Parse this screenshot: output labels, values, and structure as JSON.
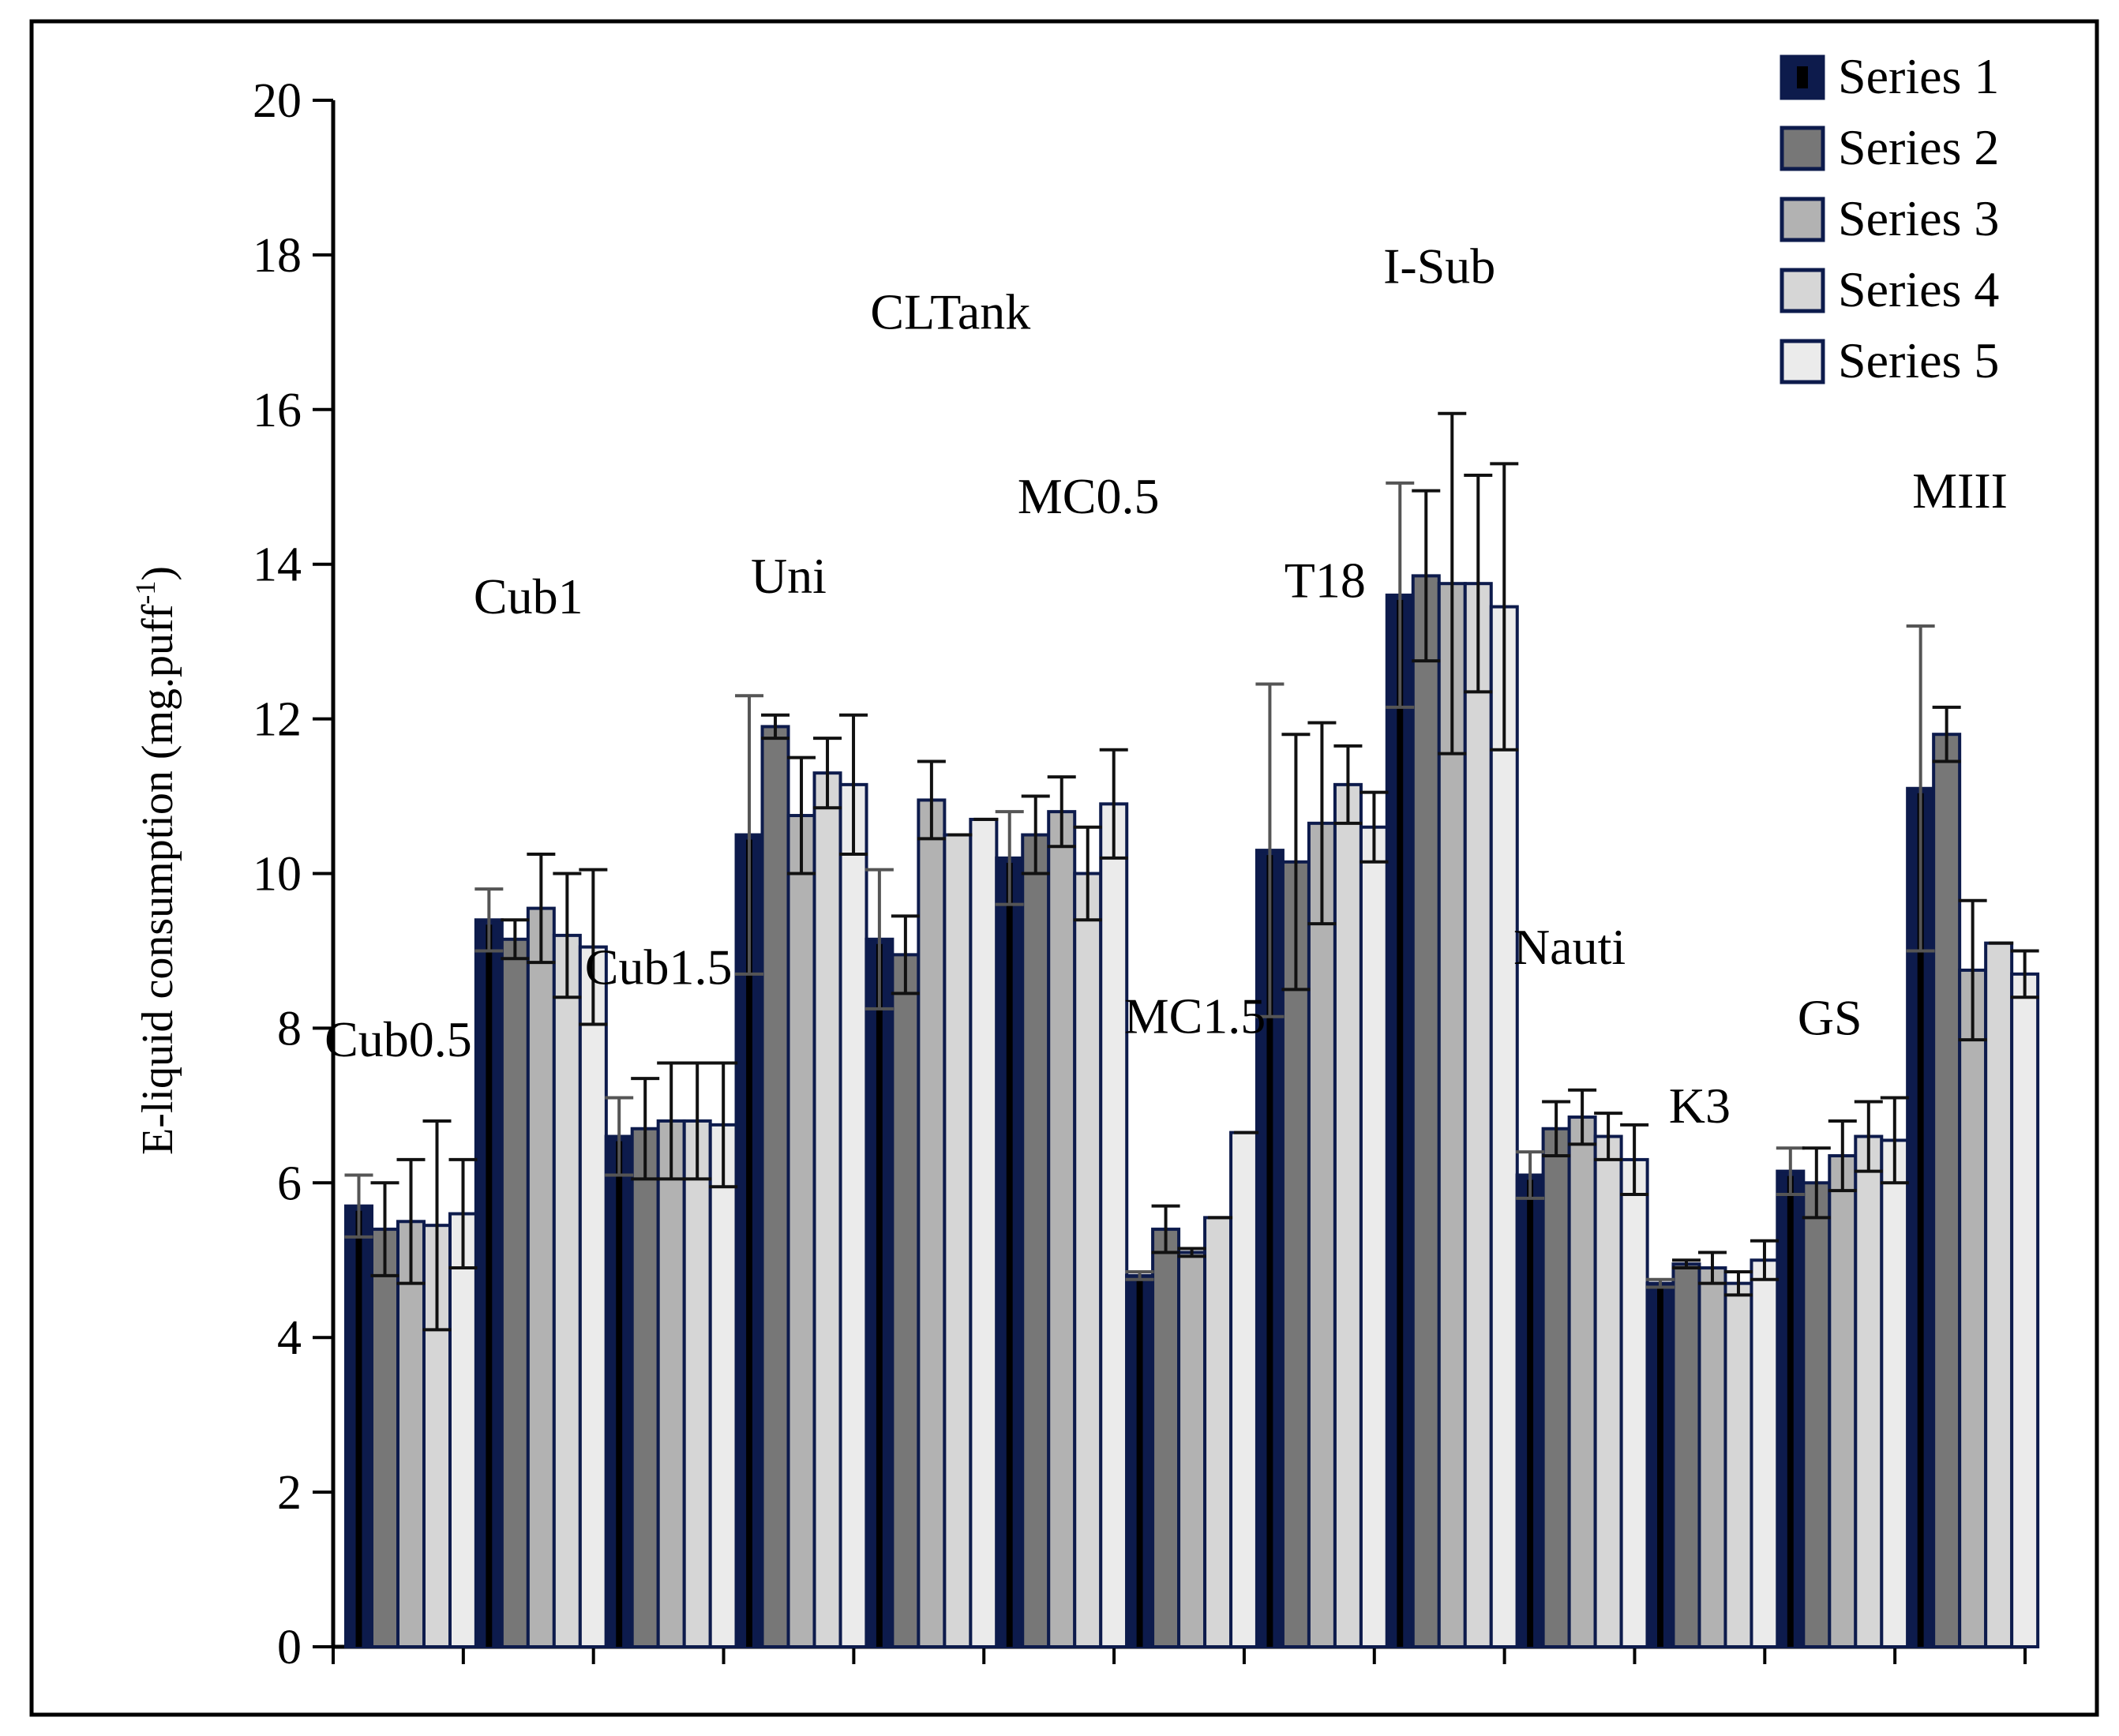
{
  "chart_data": {
    "type": "bar",
    "title": "",
    "xlabel": "",
    "ylabel": "E-liquid consumption (mg.puff",
    "ylabel_superscript": "-1",
    "ylabel_close": ")",
    "ylim": [
      0,
      20
    ],
    "yticks": [
      0,
      2,
      4,
      6,
      8,
      10,
      12,
      14,
      16,
      18,
      20
    ],
    "legend_position": "top-right",
    "categories": [
      "Cub0.5",
      "Cub1",
      "Cub1.5",
      "Uni",
      "CLTank",
      "MC0.5",
      "MC1.5",
      "T18",
      "I-Sub",
      "Nauti",
      "K3",
      "GS",
      "MIII"
    ],
    "series": [
      {
        "name": "Series 1",
        "color": "#0d1b4c",
        "center": "#000000",
        "values": [
          5.7,
          9.4,
          6.6,
          10.5,
          9.15,
          10.2,
          4.8,
          10.3,
          13.6,
          6.1,
          4.7,
          6.15,
          11.1
        ],
        "errors": [
          0.4,
          0.4,
          0.5,
          1.8,
          0.9,
          0.6,
          0.05,
          2.15,
          1.45,
          0.3,
          0.05,
          0.3,
          2.1
        ]
      },
      {
        "name": "Series 2",
        "color": "#777777",
        "center": "#777777",
        "values": [
          5.4,
          9.15,
          6.7,
          11.9,
          8.95,
          10.5,
          5.4,
          10.15,
          13.85,
          6.7,
          4.95,
          6.0,
          11.8
        ],
        "errors": [
          0.6,
          0.25,
          0.65,
          0.15,
          0.5,
          0.5,
          0.3,
          1.65,
          1.1,
          0.35,
          0.05,
          0.45,
          0.35
        ]
      },
      {
        "name": "Series 3",
        "color": "#b2b2b2",
        "center": "#b2b2b2",
        "values": [
          5.5,
          9.55,
          6.8,
          10.75,
          10.95,
          10.8,
          5.1,
          10.65,
          13.75,
          6.85,
          4.9,
          6.35,
          8.75
        ]
      },
      {
        "name": "Series 4",
        "color": "#d6d6d6",
        "center": "#d6d6d6",
        "values": [
          5.45,
          9.2,
          6.8,
          11.3,
          10.5,
          10.0,
          5.55,
          11.15,
          13.75,
          6.6,
          4.7,
          6.6,
          9.1
        ]
      },
      {
        "name": "Series 5",
        "color": "#ebebeb",
        "center": "#ebebeb",
        "values": [
          5.6,
          9.05,
          6.75,
          11.15,
          10.7,
          10.9,
          6.65,
          10.6,
          13.45,
          6.3,
          5.0,
          6.55,
          8.7
        ]
      }
    ],
    "errors_series_3": [
      0.8,
      0.7,
      0.75,
      0.75,
      0.5,
      0.45,
      0.05,
      1.3,
      2.2,
      0.35,
      0.2,
      0.45,
      0.9
    ],
    "errors_series_4": [
      1.35,
      0.8,
      0.75,
      0.45,
      0.0,
      0.6,
      0.0,
      0.5,
      1.4,
      0.3,
      0.15,
      0.45,
      0.0
    ],
    "errors_series_5": [
      0.7,
      1.0,
      0.8,
      0.9,
      0.0,
      0.7,
      0.0,
      0.45,
      1.85,
      0.45,
      0.25,
      0.55,
      0.3
    ]
  }
}
